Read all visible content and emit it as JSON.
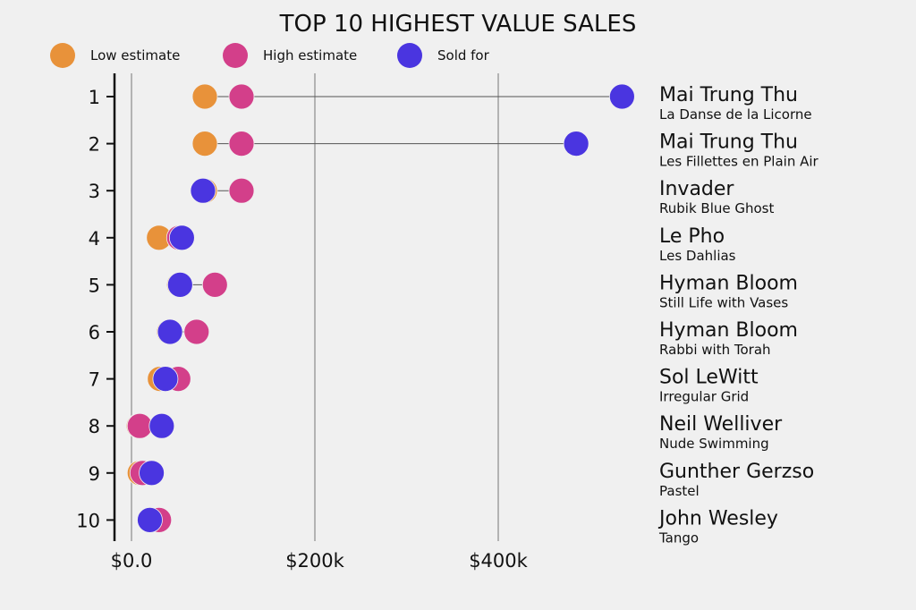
{
  "chart_data": {
    "type": "dumbbell",
    "title": "TOP 10 HIGHEST VALUE SALES",
    "xlabel": "",
    "ylabel": "",
    "xlim": [
      0,
      560
    ],
    "x_units": "thousand USD",
    "x_ticks": [
      0,
      200,
      400
    ],
    "x_tick_labels": [
      "$0.0",
      "$200k",
      "$400k"
    ],
    "grid": "vertical",
    "legend_position": "top",
    "series": [
      {
        "name": "Low estimate",
        "color": "#E8923A",
        "values": [
          80,
          80,
          80,
          30,
          52,
          41,
          31,
          8,
          9,
          20
        ]
      },
      {
        "name": "High estimate",
        "color": "#D33F8A",
        "values": [
          120,
          120,
          120,
          52,
          91,
          71,
          51,
          9,
          12,
          30
        ]
      },
      {
        "name": "Sold for",
        "color": "#4A35E0",
        "values": [
          535,
          485,
          78,
          55,
          53,
          42,
          37,
          33,
          22,
          20
        ]
      }
    ],
    "categories": [
      "1",
      "2",
      "3",
      "4",
      "5",
      "6",
      "7",
      "8",
      "9",
      "10"
    ],
    "labels": [
      {
        "artist": "Mai Trung Thu",
        "work": "La Danse de la Licorne"
      },
      {
        "artist": "Mai Trung Thu",
        "work": "Les Fillettes en Plain Air"
      },
      {
        "artist": "Invader",
        "work": "Rubik Blue Ghost"
      },
      {
        "artist": "Le Pho",
        "work": "Les Dahlias"
      },
      {
        "artist": "Hyman Bloom",
        "work": "Still Life with Vases"
      },
      {
        "artist": "Hyman Bloom",
        "work": "Rabbi with Torah"
      },
      {
        "artist": "Sol LeWitt",
        "work": "Irregular Grid"
      },
      {
        "artist": "Neil Welliver",
        "work": "Nude Swimming"
      },
      {
        "artist": "Gunther Gerzso",
        "work": "Pastel"
      },
      {
        "artist": "John Wesley",
        "work": "Tango"
      }
    ]
  }
}
